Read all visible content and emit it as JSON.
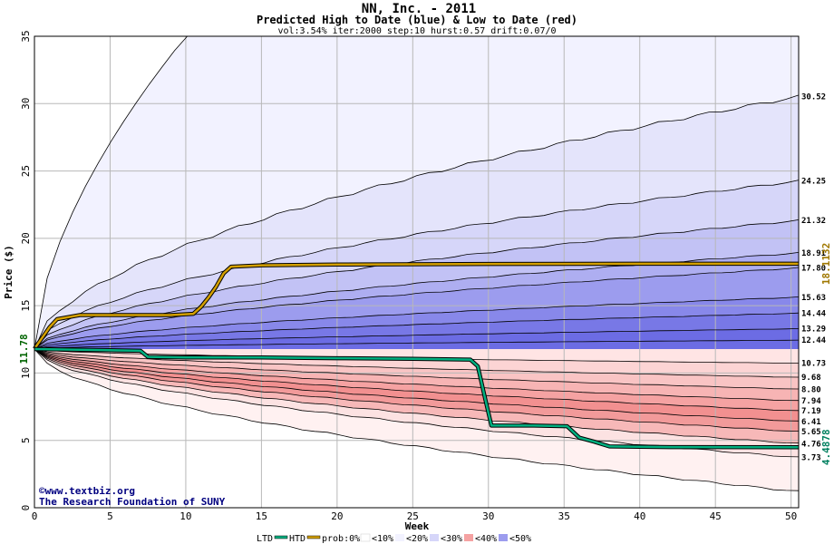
{
  "chart_data": {
    "type": "area",
    "title": "NN, Inc. - 2011",
    "subtitle": "Predicted High to Date (blue) &  Low to Date (red)",
    "params": "vol:3.54% iter:2000 step:10 hurst:0.57 drift:0.07/0",
    "xlabel": "Week",
    "ylabel": "Price ($)",
    "xlim": [
      0,
      50.5
    ],
    "ylim": [
      0,
      35
    ],
    "xticks": [
      0,
      5,
      10,
      15,
      20,
      25,
      30,
      35,
      40,
      45,
      50
    ],
    "yticks": [
      0,
      5,
      10,
      15,
      20,
      25,
      30,
      35
    ],
    "grid": true,
    "start_price": 11.78,
    "start_price_label": "11.78",
    "htd_final_label": "18.1132",
    "ltd_final_label": "4.4878",
    "htd_color": "#d4a000",
    "ltd_color": "#00b080",
    "bands_high": [
      {
        "end": 35.0,
        "label": ""
      },
      {
        "end": 30.52,
        "label": "30.52"
      },
      {
        "end": 24.25,
        "label": "24.25"
      },
      {
        "end": 21.32,
        "label": "21.32"
      },
      {
        "end": 18.91,
        "label": "18.91"
      },
      {
        "end": 17.8,
        "label": "17.80"
      },
      {
        "end": 15.63,
        "label": "15.63"
      },
      {
        "end": 14.44,
        "label": "14.44"
      },
      {
        "end": 13.29,
        "label": "13.29"
      },
      {
        "end": 12.44,
        "label": "12.44"
      }
    ],
    "bands_low": [
      {
        "end": 10.73,
        "label": "10.73"
      },
      {
        "end": 9.68,
        "label": "9.68"
      },
      {
        "end": 8.8,
        "label": "8.80"
      },
      {
        "end": 7.94,
        "label": "7.94"
      },
      {
        "end": 7.19,
        "label": "7.19"
      },
      {
        "end": 6.41,
        "label": "6.41"
      },
      {
        "end": 5.65,
        "label": "5.65"
      },
      {
        "end": 4.76,
        "label": "4.76"
      },
      {
        "end": 3.73,
        "label": "3.73"
      },
      {
        "end": 1.2,
        "label": ""
      }
    ],
    "band_fills_high": [
      "#f2f2ff",
      "#e4e4fb",
      "#d6d6f9",
      "#c2c2f5",
      "#aeaef1",
      "#9c9cee",
      "#8888ea",
      "#7878e6",
      "#6c6ce4"
    ],
    "band_fills_low": [
      "#ffe4e4",
      "#fcd4d4",
      "#f9c4c4",
      "#f7b4b4",
      "#f5a2a2",
      "#f29090",
      "#f29a9a",
      "#f7b8b8",
      "#fce2e2",
      "#fff1f1"
    ],
    "high_to_date": {
      "x": [
        0,
        0.5,
        1,
        1.5,
        2,
        2.5,
        3,
        5,
        7,
        9,
        10.5,
        11,
        11.5,
        12,
        12.5,
        13,
        15,
        20,
        30,
        40,
        50.5
      ],
      "y": [
        11.8,
        12.6,
        13.4,
        14.0,
        14.1,
        14.2,
        14.3,
        14.3,
        14.3,
        14.3,
        14.4,
        14.9,
        15.6,
        16.4,
        17.4,
        17.9,
        18.0,
        18.05,
        18.1,
        18.11,
        18.11
      ]
    },
    "low_to_date": {
      "x": [
        0,
        5,
        7,
        7.5,
        10,
        15,
        20,
        25,
        28.8,
        29.3,
        29.8,
        30.2,
        33,
        35.2,
        36,
        37,
        38,
        42,
        50.5
      ],
      "y": [
        11.78,
        11.7,
        11.65,
        11.2,
        11.15,
        11.15,
        11.1,
        11.05,
        11.0,
        10.5,
        8.0,
        6.1,
        6.1,
        6.05,
        5.2,
        4.9,
        4.55,
        4.5,
        4.49
      ]
    }
  },
  "credits": {
    "line1": "©www.textbiz.org",
    "line2": "The Research Foundation of SUNY"
  },
  "legend": {
    "ltd": "LTD",
    "htd": "HTD",
    "prob": "prob:0%",
    "items": [
      "<10%",
      "<20%",
      "<30%",
      "<40%",
      "<50%"
    ]
  }
}
